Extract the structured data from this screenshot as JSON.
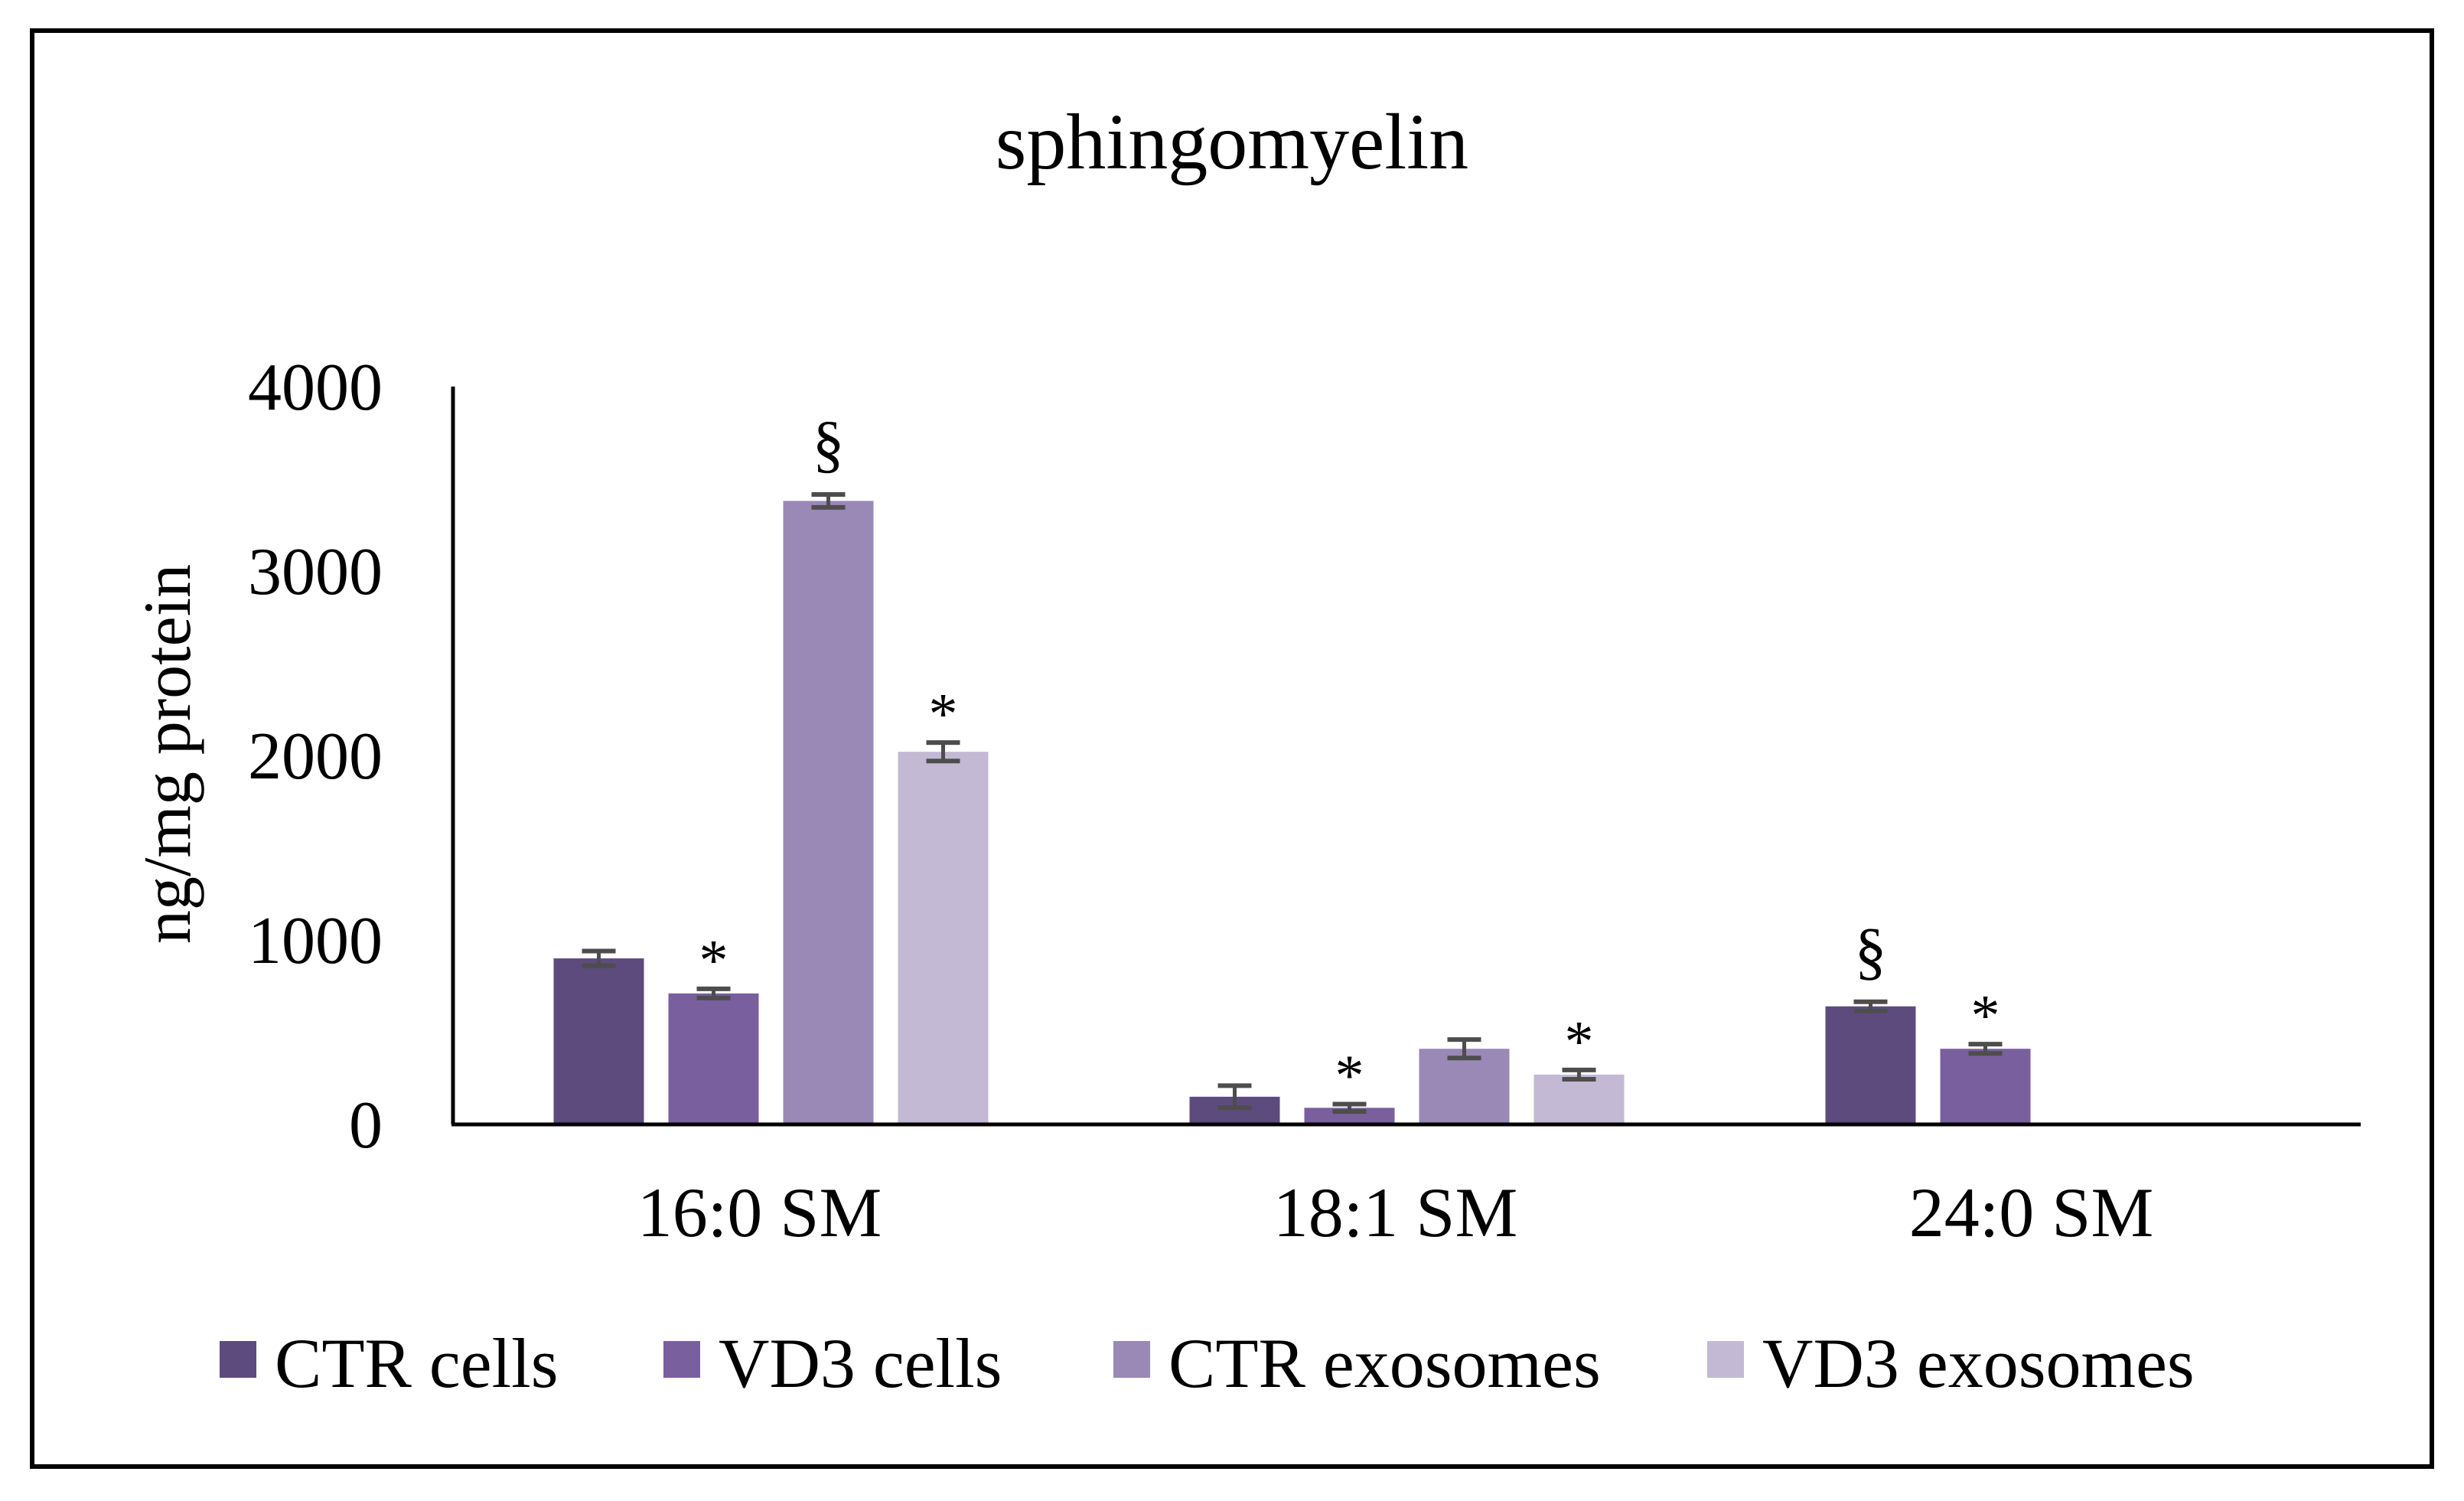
{
  "chart_data": {
    "type": "bar",
    "title": "sphingomyelin",
    "xlabel": "",
    "ylabel": "ng/mg protein",
    "ylim": [
      0,
      4000
    ],
    "yticks": [
      0,
      1000,
      2000,
      3000,
      4000
    ],
    "grid": false,
    "legend_position": "bottom",
    "categories": [
      "16:0 SM",
      "18:1 SM",
      "24:0 SM"
    ],
    "series": [
      {
        "name": "CTR cells",
        "color": "#5e4b7d",
        "values": [
          900,
          150,
          640
        ],
        "errors": [
          40,
          60,
          25
        ],
        "annotations": [
          "",
          "",
          "§"
        ]
      },
      {
        "name": "VD3 cells",
        "color": "#7a5f9e",
        "values": [
          710,
          90,
          410
        ],
        "errors": [
          25,
          20,
          25
        ],
        "annotations": [
          "*",
          "*",
          "*"
        ]
      },
      {
        "name": "CTR exosomes",
        "color": "#9a88b6",
        "values": [
          3380,
          410,
          null
        ],
        "errors": [
          35,
          50,
          null
        ],
        "annotations": [
          "§",
          "",
          ""
        ]
      },
      {
        "name": "VD3 exosomes",
        "color": "#c3b9d4",
        "values": [
          2020,
          270,
          null
        ],
        "errors": [
          50,
          25,
          null
        ],
        "annotations": [
          "*",
          "*",
          ""
        ]
      }
    ]
  }
}
